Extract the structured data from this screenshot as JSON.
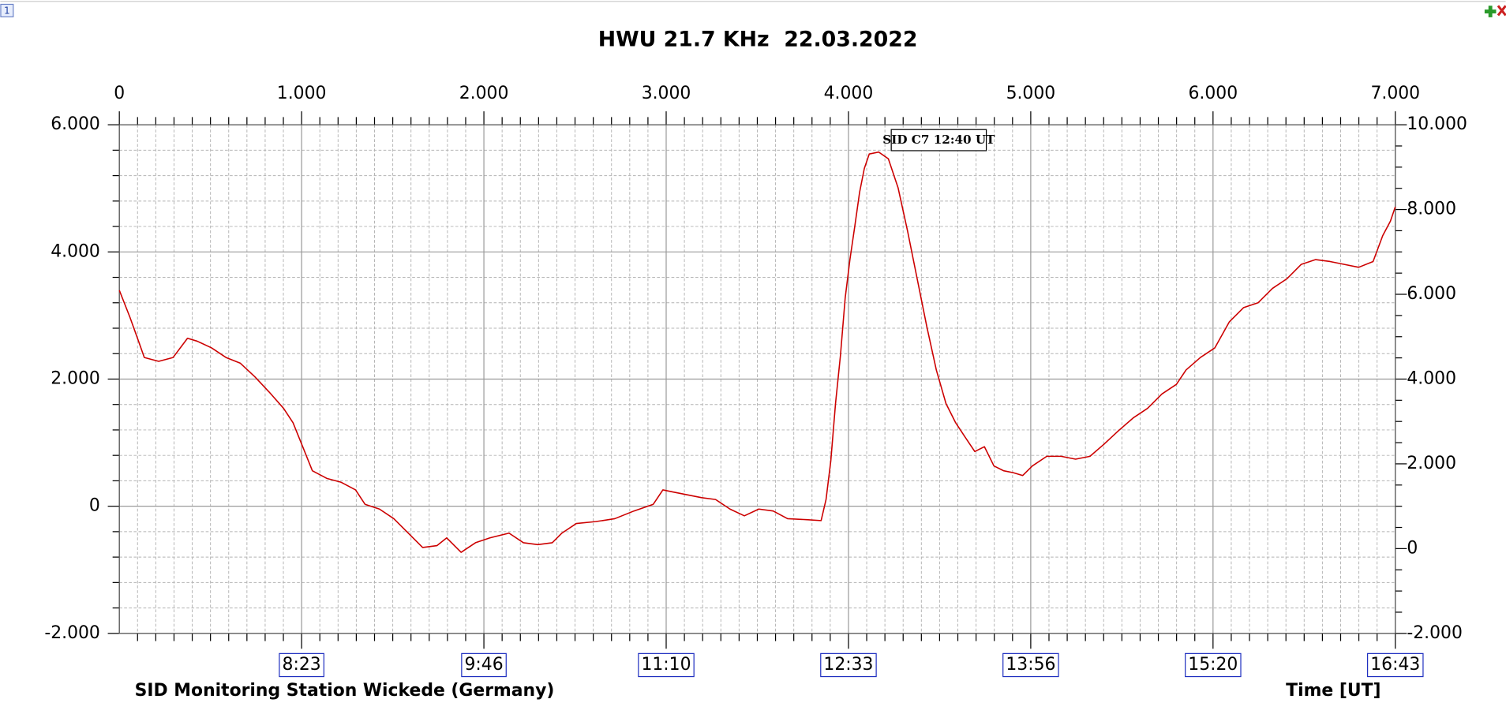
{
  "corner_label": "1",
  "chart_data": {
    "type": "line",
    "title": "HWU 21.7 KHz  22.03.2022",
    "footer_left": "SID Monitoring Station Wickede (Germany)",
    "x_label": "Time [UT]",
    "annotation": "SID C7 12:40 UT",
    "color": "#cc0000",
    "grid": true,
    "x": [
      0,
      58,
      111,
      137,
      216,
      295,
      374,
      427,
      506,
      585,
      664,
      743,
      822,
      901,
      953,
      1006,
      1059,
      1138,
      1217,
      1296,
      1348,
      1427,
      1506,
      1585,
      1664,
      1743,
      1796,
      1875,
      1954,
      2033,
      2138,
      2217,
      2296,
      2375,
      2428,
      2507,
      2613,
      2718,
      2823,
      2929,
      2982,
      3034,
      3113,
      3192,
      3271,
      3350,
      3429,
      3508,
      3587,
      3666,
      3771,
      3850,
      3877,
      3903,
      3929,
      3956,
      3982,
      4008,
      4035,
      4061,
      4087,
      4114,
      4166,
      4219,
      4272,
      4324,
      4377,
      4430,
      4482,
      4535,
      4588,
      4640,
      4693,
      4746,
      4798,
      4851,
      4904,
      4956,
      5009,
      5088,
      5167,
      5246,
      5325,
      5404,
      5483,
      5562,
      5641,
      5720,
      5799,
      5852,
      5931,
      6010,
      6089,
      6168,
      6247,
      6326,
      6405,
      6484,
      6563,
      6642,
      6720,
      6799,
      6878,
      6931,
      6973,
      7000
    ],
    "values": [
      3396,
      2974,
      2551,
      2340,
      2279,
      2340,
      2642,
      2596,
      2491,
      2340,
      2249,
      2038,
      1796,
      1540,
      1313,
      936,
      558,
      438,
      377,
      257,
      30,
      -45,
      -196,
      -423,
      -649,
      -619,
      -498,
      -725,
      -574,
      -498,
      -423,
      -574,
      -604,
      -574,
      -423,
      -272,
      -242,
      -196,
      -75,
      30,
      257,
      226,
      181,
      136,
      106,
      -45,
      -151,
      -45,
      -75,
      -196,
      -211,
      -226,
      106,
      709,
      1615,
      2370,
      3275,
      3879,
      4408,
      4936,
      5313,
      5540,
      5570,
      5464,
      5011,
      4332,
      3577,
      2823,
      2143,
      1615,
      1313,
      1087,
      860,
      936,
      634,
      558,
      528,
      483,
      634,
      785,
      785,
      740,
      785,
      981,
      1192,
      1389,
      1540,
      1766,
      1917,
      2143,
      2340,
      2491,
      2898,
      3125,
      3200,
      3426,
      3577,
      3804,
      3879,
      3849,
      3804,
      3758,
      3849,
      4257,
      4483,
      4709
    ],
    "xlim": [
      0,
      7000
    ],
    "xticks": [
      0,
      {
        "value": 1000,
        "label": "1.000"
      },
      {
        "value": 2000,
        "label": "2.000"
      },
      {
        "value": 3000,
        "label": "3.000"
      },
      {
        "value": 4000,
        "label": "4.000"
      },
      {
        "value": 5000,
        "label": "5.000"
      },
      {
        "value": 6000,
        "label": "6.000"
      },
      {
        "value": 7000,
        "label": "7.000"
      }
    ],
    "x_minor_ticks": [
      100,
      200,
      300,
      400,
      500,
      600,
      700,
      800,
      900,
      1100,
      1200,
      1300,
      1400,
      1500,
      1600,
      1700,
      1800,
      1900,
      2100,
      2200,
      2300,
      2400,
      2500,
      2600,
      2700,
      2800,
      2900,
      3100,
      3200,
      3300,
      3400,
      3500,
      3600,
      3700,
      3800,
      3900,
      4100,
      4200,
      4300,
      4400,
      4500,
      4600,
      4700,
      4800,
      4900,
      5100,
      5200,
      5300,
      5400,
      5500,
      5600,
      5700,
      5800,
      5900,
      6100,
      6200,
      6300,
      6400,
      6500,
      6600,
      6700,
      6800,
      6900
    ],
    "time_ticks": [
      {
        "value": 1000,
        "label": "8:23"
      },
      {
        "value": 2000,
        "label": "9:46"
      },
      {
        "value": 3000,
        "label": "11:10"
      },
      {
        "value": 4000,
        "label": "12:33"
      },
      {
        "value": 5000,
        "label": "13:56"
      },
      {
        "value": 6000,
        "label": "15:20"
      },
      {
        "value": 7000,
        "label": "16:43"
      }
    ],
    "ylim": [
      -2000,
      6000
    ],
    "yticks": [
      {
        "value": -2000,
        "label": "-2.000"
      },
      0,
      {
        "value": 2000,
        "label": "2.000"
      },
      {
        "value": 4000,
        "label": "4.000"
      },
      {
        "value": 6000,
        "label": "6.000"
      }
    ],
    "y_minor_ticks": [
      -1600,
      -1200,
      -800,
      -400,
      400,
      800,
      1200,
      1600,
      2400,
      2800,
      3200,
      3600,
      4400,
      4800,
      5200,
      5600
    ],
    "y2lim": [
      -2000,
      10000
    ],
    "y2ticks": [
      {
        "value": -2000,
        "label": "-2.000"
      },
      0,
      {
        "value": 2000,
        "label": "2.000"
      },
      {
        "value": 4000,
        "label": "4.000"
      },
      {
        "value": 6000,
        "label": "6.000"
      },
      {
        "value": 8000,
        "label": "8.000"
      },
      {
        "value": 10000,
        "label": "10.000"
      }
    ],
    "y2_minor_ticks": [
      -1500,
      -1000,
      -500,
      500,
      1000,
      1500,
      2500,
      3000,
      3500,
      4500,
      5000,
      5500,
      6500,
      7000,
      7500,
      8500,
      9000,
      9500
    ]
  }
}
